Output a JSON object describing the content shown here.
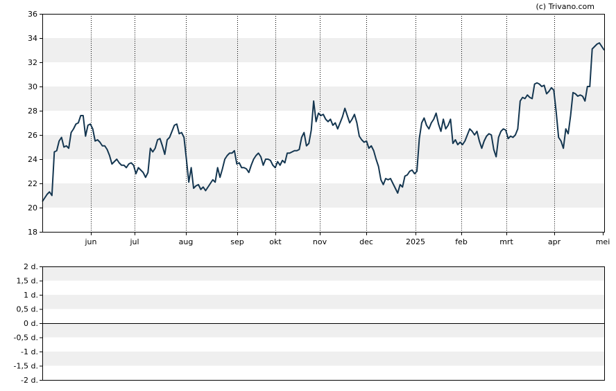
{
  "copyright": "(c) Trivano.com",
  "colors": {
    "line": "#143650",
    "band": "#efefef",
    "axis": "#000000",
    "background": "#ffffff"
  },
  "chart_data": [
    {
      "type": "line",
      "title": "",
      "xlabel": "",
      "ylabel": "",
      "ylim": [
        18,
        36
      ],
      "y_ticks": [
        "18",
        "20",
        "22",
        "24",
        "26",
        "28",
        "30",
        "32",
        "34",
        "36"
      ],
      "x_ticks": [
        "jun",
        "jul",
        "aug",
        "sep",
        "okt",
        "nov",
        "dec",
        "2025",
        "feb",
        "mrt",
        "apr",
        "mei"
      ],
      "grid": "dotted vertical at month ticks; alternating horizontal bands",
      "series": [
        {
          "values": [
            20.5,
            20.8,
            21.1,
            21.3,
            21.0,
            24.6,
            24.7,
            25.5,
            25.8,
            25.0,
            25.1,
            24.9,
            26.2,
            26.5,
            26.9,
            27.0,
            27.6,
            27.6,
            25.9,
            26.8,
            26.9,
            26.5,
            25.5,
            25.6,
            25.4,
            25.1,
            25.1,
            24.8,
            24.3,
            23.6,
            23.8,
            24.0,
            23.7,
            23.5,
            23.5,
            23.3,
            23.6,
            23.7,
            23.5,
            22.8,
            23.3,
            23.1,
            22.9,
            22.5,
            22.9,
            24.9,
            24.6,
            24.9,
            25.6,
            25.7,
            25.1,
            24.4,
            25.6,
            25.8,
            26.3,
            26.8,
            26.9,
            26.1,
            26.2,
            25.8,
            24.0,
            22.1,
            23.3,
            21.6,
            21.8,
            21.9,
            21.5,
            21.7,
            21.4,
            21.7,
            22.0,
            22.3,
            22.1,
            23.3,
            22.5,
            23.2,
            24.0,
            24.3,
            24.5,
            24.5,
            24.7,
            23.6,
            23.7,
            23.3,
            23.3,
            23.2,
            22.9,
            23.5,
            24.0,
            24.3,
            24.5,
            24.2,
            23.5,
            24.0,
            24.0,
            23.9,
            23.5,
            23.3,
            23.8,
            23.5,
            23.9,
            23.7,
            24.5,
            24.5,
            24.6,
            24.7,
            24.7,
            24.8,
            25.8,
            26.2,
            25.1,
            25.3,
            26.4,
            28.8,
            27.1,
            27.8,
            27.6,
            27.7,
            27.3,
            27.1,
            27.3,
            26.8,
            27.0,
            26.5,
            27.0,
            27.5,
            28.2,
            27.6,
            27.0,
            27.3,
            27.7,
            27.0,
            25.9,
            25.6,
            25.4,
            25.5,
            24.9,
            25.1,
            24.7,
            24.0,
            23.4,
            22.3,
            21.9,
            22.4,
            22.3,
            22.4,
            22.0,
            21.6,
            21.2,
            21.9,
            21.7,
            22.6,
            22.7,
            23.0,
            23.1,
            22.8,
            23.0,
            25.7,
            27.0,
            27.4,
            26.8,
            26.5,
            27.0,
            27.3,
            27.8,
            26.9,
            26.3,
            27.3,
            26.5,
            26.8,
            27.3,
            25.3,
            25.6,
            25.2,
            25.4,
            25.2,
            25.5,
            26.0,
            26.5,
            26.3,
            26.0,
            26.3,
            25.5,
            24.9,
            25.5,
            25.9,
            26.1,
            26.0,
            24.8,
            24.2,
            25.8,
            26.3,
            26.5,
            26.4,
            25.7,
            25.9,
            25.8,
            26.0,
            26.5,
            28.8,
            29.1,
            29.0,
            29.3,
            29.1,
            29.0,
            30.2,
            30.3,
            30.2,
            30.0,
            30.1,
            29.4,
            29.6,
            29.9,
            29.7,
            27.9,
            25.8,
            25.5,
            24.9,
            26.5,
            26.1,
            27.6,
            29.5,
            29.4,
            29.2,
            29.3,
            29.2,
            28.8,
            30.0,
            30.0,
            33.1,
            33.3,
            33.5,
            33.6,
            33.3,
            33.0
          ]
        }
      ]
    },
    {
      "type": "line",
      "title": "",
      "ylim": [
        -2,
        2
      ],
      "y_ticks": [
        "2 d.",
        "1,5 d.",
        "1 d.",
        "0,5 d.",
        "0 d.",
        "-0,5 d.",
        "-1 d.",
        "-1,5 d.",
        "-2 d."
      ],
      "grid": "alternating horizontal bands",
      "series": []
    }
  ]
}
